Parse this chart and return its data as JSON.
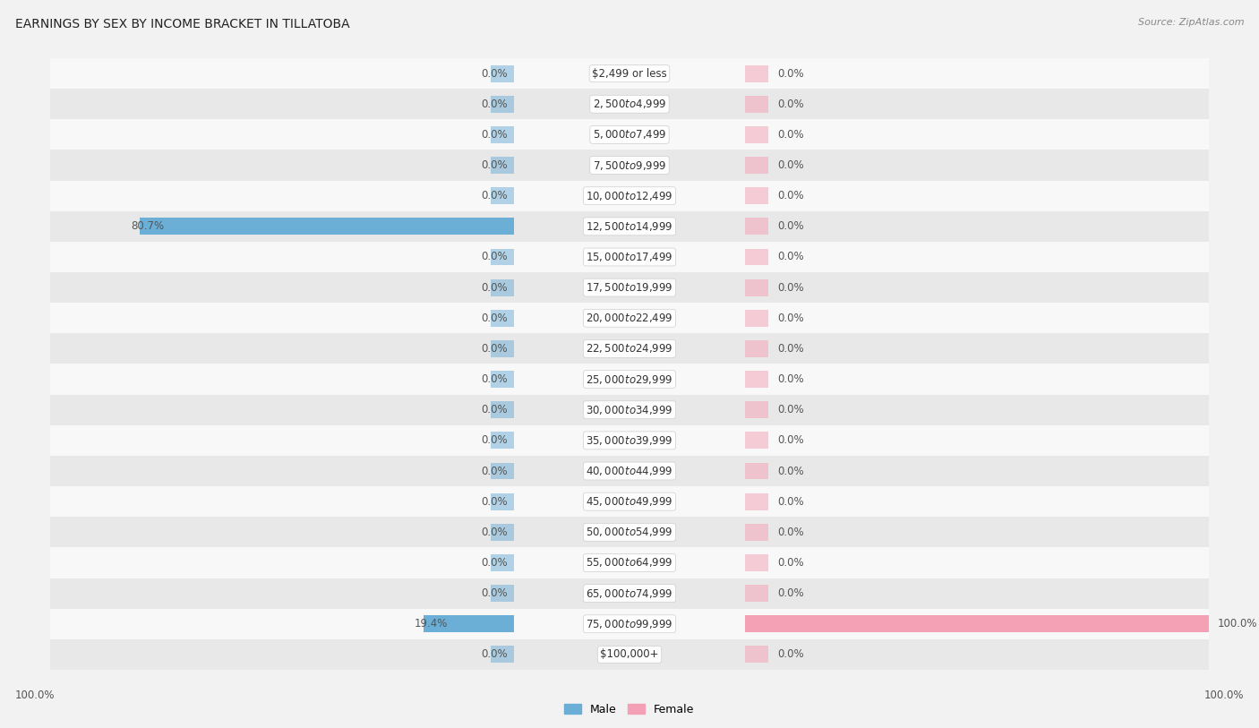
{
  "title": "EARNINGS BY SEX BY INCOME BRACKET IN TILLATOBA",
  "source": "Source: ZipAtlas.com",
  "categories": [
    "$2,499 or less",
    "$2,500 to $4,999",
    "$5,000 to $7,499",
    "$7,500 to $9,999",
    "$10,000 to $12,499",
    "$12,500 to $14,999",
    "$15,000 to $17,499",
    "$17,500 to $19,999",
    "$20,000 to $22,499",
    "$22,500 to $24,999",
    "$25,000 to $29,999",
    "$30,000 to $34,999",
    "$35,000 to $39,999",
    "$40,000 to $44,999",
    "$45,000 to $49,999",
    "$50,000 to $54,999",
    "$55,000 to $64,999",
    "$65,000 to $74,999",
    "$75,000 to $99,999",
    "$100,000+"
  ],
  "male_values": [
    0.0,
    0.0,
    0.0,
    0.0,
    0.0,
    80.7,
    0.0,
    0.0,
    0.0,
    0.0,
    0.0,
    0.0,
    0.0,
    0.0,
    0.0,
    0.0,
    0.0,
    0.0,
    19.4,
    0.0
  ],
  "female_values": [
    0.0,
    0.0,
    0.0,
    0.0,
    0.0,
    0.0,
    0.0,
    0.0,
    0.0,
    0.0,
    0.0,
    0.0,
    0.0,
    0.0,
    0.0,
    0.0,
    0.0,
    0.0,
    100.0,
    0.0
  ],
  "male_color": "#6baed6",
  "female_color": "#f4a0b5",
  "male_label": "Male",
  "female_label": "Female",
  "bar_height": 0.55,
  "max_value": 100.0,
  "bg_color": "#f2f2f2",
  "row_color_a": "#f8f8f8",
  "row_color_b": "#e8e8e8",
  "stub_value": 5.0,
  "title_fontsize": 10,
  "source_fontsize": 8,
  "annot_fontsize": 8.5,
  "cat_fontsize": 8.5,
  "legend_fontsize": 9,
  "axis_label_fontsize": 8.5,
  "annot_color": "#555555",
  "cat_text_color": "#333333",
  "title_color": "#222222"
}
